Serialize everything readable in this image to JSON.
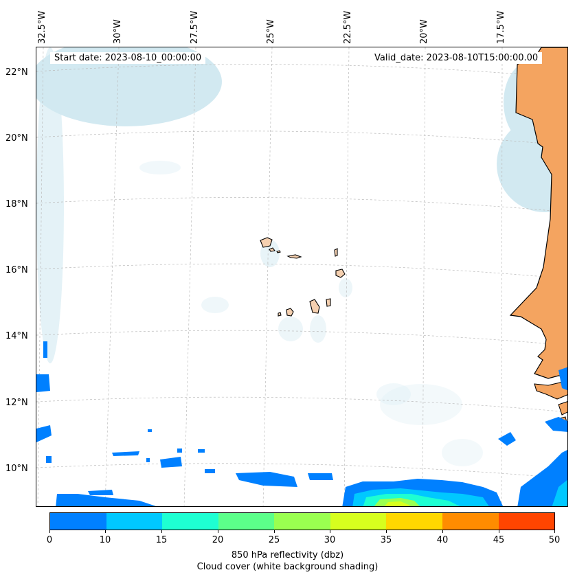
{
  "map": {
    "start_date": "Start date: 2023-08-10_00:00:00",
    "valid_date": "Valid_date: 2023-08-10T15:00:00.00",
    "lon_labels": [
      "32.5°W",
      "30°W",
      "27.5°W",
      "25°W",
      "22.5°W",
      "20°W",
      "17.5°W"
    ],
    "lat_labels": [
      "22°N",
      "20°N",
      "18°N",
      "16°N",
      "14°N",
      "12°N",
      "10°N"
    ],
    "land_color": "#f4a460",
    "cloud_color": "#add8e6"
  },
  "colorbar": {
    "ticks": [
      "0",
      "10",
      "15",
      "20",
      "25",
      "30",
      "35",
      "40",
      "45",
      "50"
    ],
    "colors": [
      "#0080ff",
      "#00c8ff",
      "#1effd2",
      "#5cff8a",
      "#9aff50",
      "#d7ff1e",
      "#ffd700",
      "#ff8c00",
      "#ff4500"
    ],
    "label": "850 hPa reflectivity (dbz)",
    "sublabel": "Cloud cover (white background shading)"
  }
}
